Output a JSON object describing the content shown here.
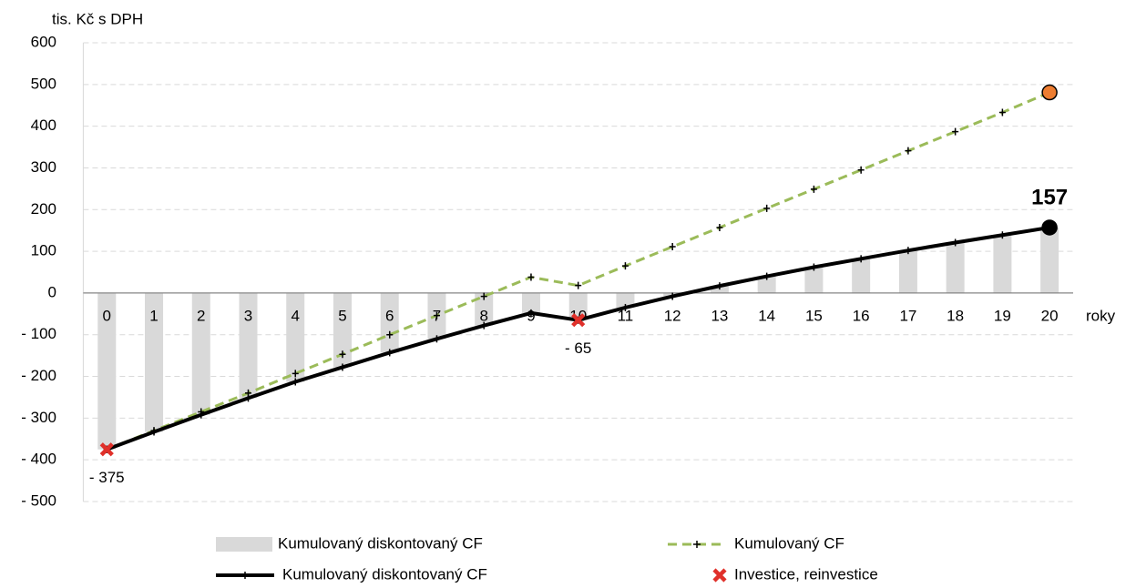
{
  "chart_data": {
    "type": "combo",
    "y_axis_label": "tis. Kč s DPH",
    "x_axis_label": "roky",
    "categories": [
      0,
      1,
      2,
      3,
      4,
      5,
      6,
      7,
      8,
      9,
      10,
      11,
      12,
      13,
      14,
      15,
      16,
      17,
      18,
      19,
      20
    ],
    "ylim": [
      -500,
      600
    ],
    "yticks": [
      {
        "value": -500,
        "label": "- 500"
      },
      {
        "value": -400,
        "label": "- 400"
      },
      {
        "value": -300,
        "label": "- 300"
      },
      {
        "value": -200,
        "label": "- 200"
      },
      {
        "value": -100,
        "label": "- 100"
      },
      0,
      100,
      200,
      300,
      400,
      500,
      600
    ],
    "negative_tick_color": "#ff0000",
    "grid": true,
    "series": [
      {
        "name": "Kumulovaný diskontovaný CF",
        "type": "bar",
        "color": "#d9d9d9",
        "values": [
          -375,
          -333,
          -292,
          -252,
          -213,
          -178,
          -143,
          -110,
          -78,
          -48,
          -65,
          -35,
          -8,
          17,
          40,
          62,
          82,
          102,
          121,
          139,
          157
        ]
      },
      {
        "name": "Kumulovaný CF",
        "type": "line",
        "dashed": true,
        "color": "#9bbb59",
        "end_marker_color": "#ed7d31",
        "values": [
          -375,
          -330,
          -285,
          -240,
          -193,
          -147,
          -100,
          -54,
          -8,
          38,
          18,
          65,
          111,
          157,
          203,
          249,
          295,
          341,
          387,
          433,
          481
        ]
      },
      {
        "name": "Kumulovaný diskontovaný CF",
        "type": "line",
        "dashed": false,
        "color": "#000000",
        "end_marker_color": "#000000",
        "end_label": true,
        "values": [
          -375,
          -333,
          -292,
          -252,
          -213,
          -178,
          -143,
          -110,
          -78,
          -48,
          -65,
          -35,
          -8,
          17,
          40,
          62,
          82,
          102,
          121,
          139,
          157
        ]
      },
      {
        "name": "Investice, reinvestice",
        "type": "marker",
        "color": "#e0302a",
        "values": [
          -375,
          null,
          null,
          null,
          null,
          null,
          null,
          null,
          null,
          null,
          -65,
          null,
          null,
          null,
          null,
          null,
          null,
          null,
          null,
          null,
          null
        ],
        "value_labels": [
          "- 375",
          null,
          null,
          null,
          null,
          null,
          null,
          null,
          null,
          null,
          "- 65",
          null,
          null,
          null,
          null,
          null,
          null,
          null,
          null,
          null,
          null
        ]
      }
    ]
  }
}
